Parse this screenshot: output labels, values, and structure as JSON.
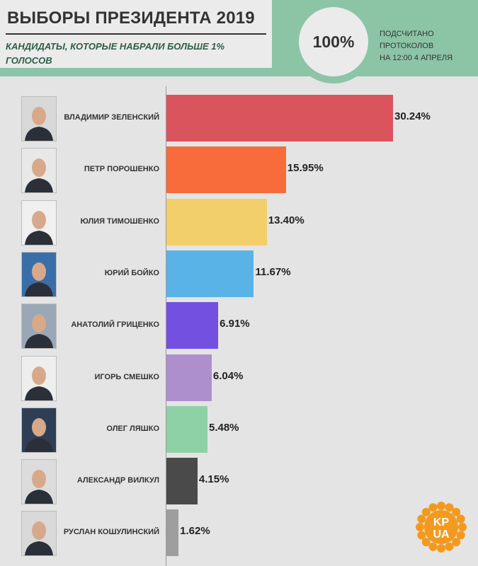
{
  "header": {
    "title": "ВЫБОРЫ ПРЕЗИДЕНТА 2019",
    "subtitle": "КАНДИДАТЫ, КОТОРЫЕ НАБРАЛИ БОЛЬШЕ 1% ГОЛОСОВ",
    "counted_percent": "100%",
    "count_note_1": "ПОДСЧИТАНО",
    "count_note_2": "ПРОТОКОЛОВ",
    "count_note_3": "НА 12:00 4 АПРЕЛЯ"
  },
  "logo": {
    "line1": "KP",
    "line2": "UA",
    "color": "#f39a1e"
  },
  "colors": {
    "header_band": "#8cc4a6",
    "background": "#e4e4e4"
  },
  "chart_data": {
    "type": "bar",
    "orientation": "horizontal",
    "title": "ВЫБОРЫ ПРЕЗИДЕНТА 2019",
    "subtitle": "КАНДИДАТЫ, КОТОРЫЕ НАБРАЛИ БОЛЬШЕ 1% ГОЛОСОВ",
    "categories": [
      "ВЛАДИМИР ЗЕЛЕНСКИЙ",
      "ПЕТР ПОРОШЕНКО",
      "ЮЛИЯ ТИМОШЕНКО",
      "ЮРИЙ БОЙКО",
      "АНАТОЛИЙ ГРИЦЕНКО",
      "ИГОРЬ СМЕШКО",
      "ОЛЕГ ЛЯШКО",
      "АЛЕКСАНДР ВИЛКУЛ",
      "РУСЛАН КОШУЛИНСКИЙ"
    ],
    "values": [
      30.24,
      15.95,
      13.4,
      11.67,
      6.91,
      6.04,
      5.48,
      4.15,
      1.62
    ],
    "labels": [
      "30.24%",
      "15.95%",
      "13.40%",
      "11.67%",
      "6.91%",
      "6.04%",
      "5.48%",
      "4.15%",
      "1.62%"
    ],
    "bar_colors": [
      "#d9545d",
      "#f86b3b",
      "#f2cf6a",
      "#5ab3e6",
      "#7350e0",
      "#ad8fce",
      "#8fd1a7",
      "#4a4a4a",
      "#9e9e9e"
    ],
    "unit": "%",
    "xlim": [
      0,
      32
    ],
    "grid": false,
    "legend": "none"
  }
}
